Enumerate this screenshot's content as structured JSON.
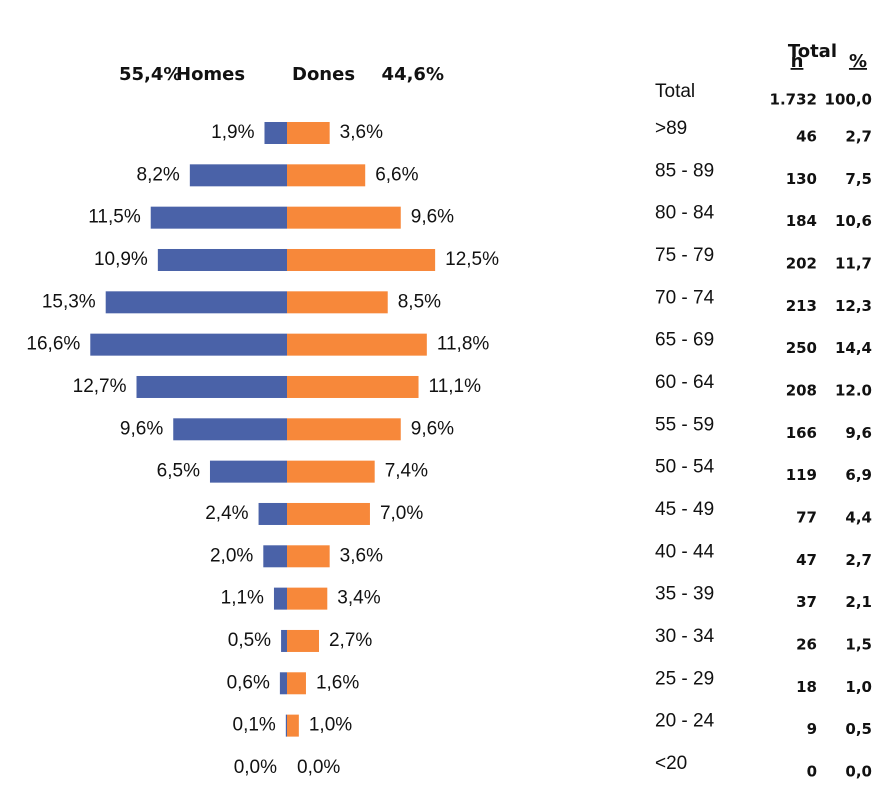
{
  "chart_data": {
    "type": "pyramid",
    "categories": [
      ">89",
      "85 - 89",
      "80 - 84",
      "75 - 79",
      "70 - 74",
      "65 - 69",
      "60 - 64",
      "55 - 59",
      "50 - 54",
      "45 - 49",
      "40 - 44",
      "35 - 39",
      "30 - 34",
      "25 - 29",
      "20 - 24",
      "<20"
    ],
    "series": [
      {
        "name": "Homes",
        "share": {
          "value": 55.4,
          "label": "55,4%"
        },
        "color": "#4a62a8",
        "values": [
          1.9,
          8.2,
          11.5,
          10.9,
          15.3,
          16.6,
          12.7,
          9.6,
          6.5,
          2.4,
          2.0,
          1.1,
          0.5,
          0.6,
          0.1,
          0.0
        ],
        "value_labels": [
          "1,9%",
          "8,2%",
          "11,5%",
          "10,9%",
          "15,3%",
          "16,6%",
          "12,7%",
          "9,6%",
          "6,5%",
          "2,4%",
          "2,0%",
          "1,1%",
          "0,5%",
          "0,6%",
          "0,1%",
          "0,0%"
        ]
      },
      {
        "name": "Dones",
        "share": {
          "value": 44.6,
          "label": "44,6%"
        },
        "color": "#f7883a",
        "values": [
          3.6,
          6.6,
          9.6,
          12.5,
          8.5,
          11.8,
          11.1,
          9.6,
          7.4,
          7.0,
          3.6,
          3.4,
          2.7,
          1.6,
          1.0,
          0.0
        ],
        "value_labels": [
          "3,6%",
          "6,6%",
          "9,6%",
          "12,5%",
          "8,5%",
          "11,8%",
          "11,1%",
          "9,6%",
          "7,4%",
          "7,0%",
          "3,6%",
          "3,4%",
          "2,7%",
          "1,6%",
          "1,0%",
          "0,0%"
        ]
      }
    ]
  },
  "table": {
    "title": "Total",
    "columns": [
      "n",
      "%"
    ],
    "total_row": [
      "Total",
      "1.732",
      "100,0"
    ],
    "rows": [
      [
        "46",
        "2,7"
      ],
      [
        "130",
        "7,5"
      ],
      [
        "184",
        "10,6"
      ],
      [
        "202",
        "11,7"
      ],
      [
        "213",
        "12,3"
      ],
      [
        "250",
        "14,4"
      ],
      [
        "208",
        "12.0"
      ],
      [
        "166",
        "9,6"
      ],
      [
        "119",
        "6,9"
      ],
      [
        "77",
        "4,4"
      ],
      [
        "47",
        "2,7"
      ],
      [
        "37",
        "2,1"
      ],
      [
        "26",
        "1,5"
      ],
      [
        "18",
        "1,0"
      ],
      [
        "9",
        "0,5"
      ],
      [
        "0",
        "0,0"
      ]
    ]
  }
}
